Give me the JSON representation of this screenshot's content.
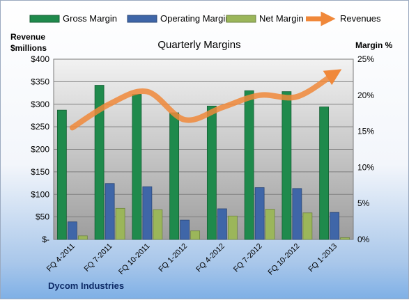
{
  "chart_data": {
    "type": "bar",
    "title": "Quarterly Margins",
    "company": "Dycom Industries",
    "categories": [
      "FQ 4-2011",
      "FQ 7-2011",
      "FQ 10-2011",
      "FQ 1-2012",
      "FQ 4-2012",
      "FQ 7-2012",
      "FQ 10-2012",
      "FQ 1-2013"
    ],
    "series": [
      {
        "name": "Gross Margin",
        "axis": "left",
        "color": "#1f8a4c",
        "values": [
          287,
          342,
          322,
          281,
          296,
          330,
          328,
          294
        ]
      },
      {
        "name": "Operating Margin",
        "axis": "left",
        "color": "#3f66a8",
        "values": [
          39,
          124,
          117,
          43,
          68,
          115,
          113,
          60
        ]
      },
      {
        "name": "Net Margin",
        "axis": "left",
        "color": "#9bb65a",
        "values": [
          8,
          69,
          66,
          19,
          52,
          67,
          59,
          4
        ]
      },
      {
        "name": "Revenues",
        "axis": "right",
        "color": "#f0883a",
        "type": "line",
        "values": [
          0.155,
          0.188,
          0.205,
          0.166,
          0.183,
          0.2,
          0.198,
          0.23
        ]
      }
    ],
    "y_left": {
      "label_line1": "Revenue",
      "label_line2": "$millions",
      "range": [
        0,
        400
      ],
      "tick_values": [
        0,
        50,
        100,
        150,
        200,
        250,
        300,
        350,
        400
      ],
      "tick_labels": [
        "$-",
        "$50",
        "$100",
        "$150",
        "$200",
        "$250",
        "$300",
        "$350",
        "$400"
      ]
    },
    "y_right": {
      "label": "Margin %",
      "range": [
        0,
        0.25
      ],
      "tick_values": [
        0,
        0.05,
        0.1,
        0.15,
        0.2,
        0.25
      ],
      "tick_labels": [
        "0%",
        "5%",
        "10%",
        "15%",
        "20%",
        "25%"
      ]
    },
    "legend_position": "top",
    "grid": true
  }
}
